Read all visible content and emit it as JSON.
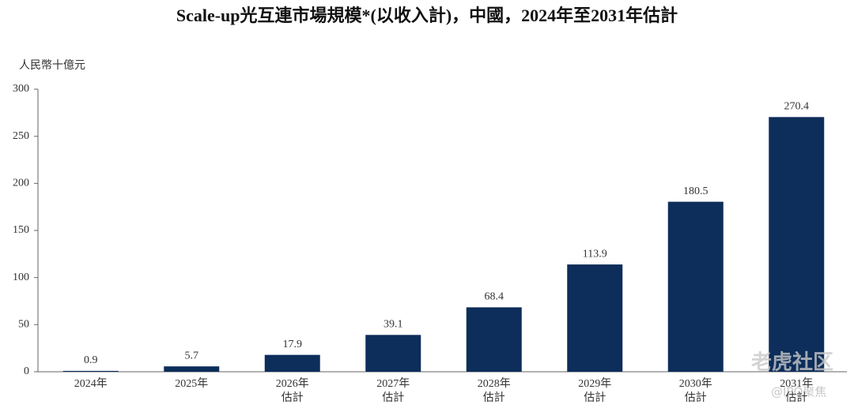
{
  "chart_data": {
    "type": "bar",
    "title": "Scale-up光互連市場規模*(以收入計)，中國，2024年至2031年估計",
    "y_label": "人民幣十億元",
    "categories": [
      "2024年",
      "2025年",
      "2026年\n估計",
      "2027年\n估計",
      "2028年\n估計",
      "2029年\n估計",
      "2030年\n估計",
      "2031年\n估計"
    ],
    "values": [
      0.9,
      5.7,
      17.9,
      39.1,
      68.4,
      113.9,
      180.5,
      270.4
    ],
    "color": "#0d2d5a",
    "ylim": [
      0,
      300
    ],
    "yticks": [
      0,
      50,
      100,
      150,
      200,
      250,
      300
    ],
    "grid": false,
    "watermarks": [
      "老虎社区",
      "@IPO聚焦"
    ]
  }
}
